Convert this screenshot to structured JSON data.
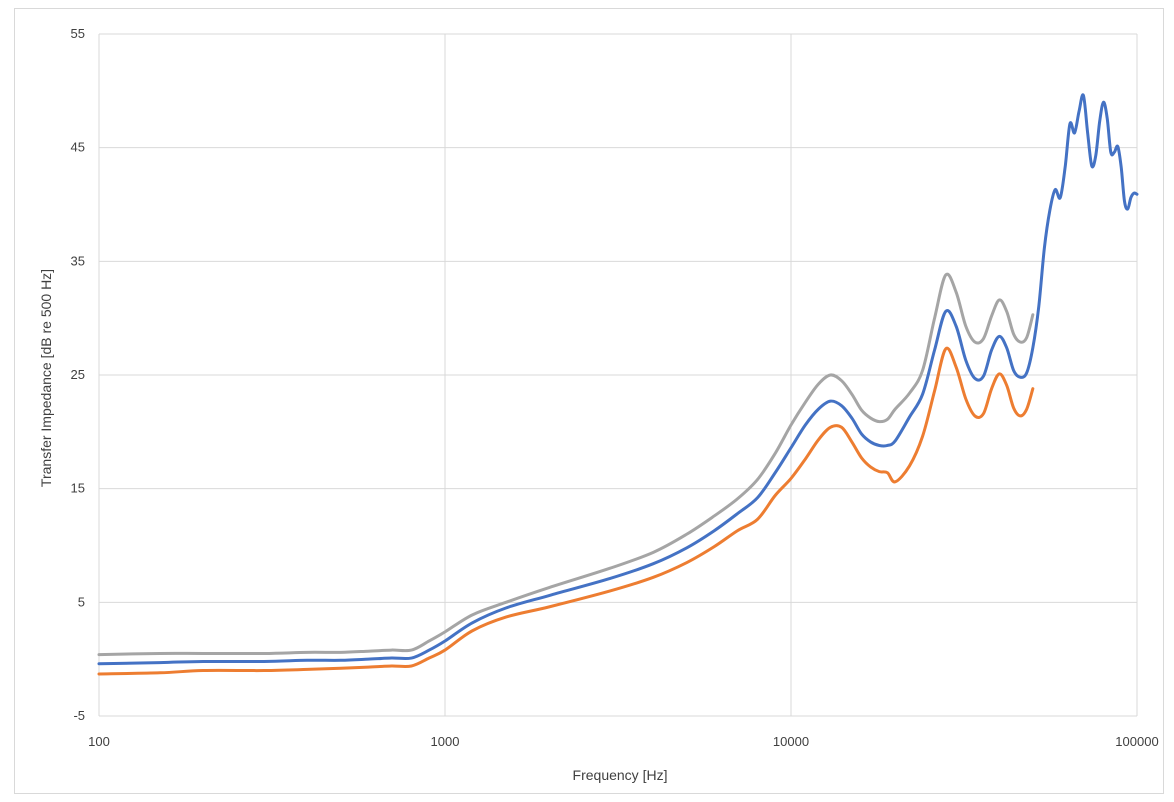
{
  "chart_data": {
    "type": "line",
    "title": "",
    "xlabel": "Frequency [Hz]",
    "ylabel": "Transfer Impedance [dB re 500 Hz]",
    "xscale": "log",
    "xlim": [
      100,
      100000
    ],
    "ylim": [
      -5,
      55
    ],
    "x_ticks": [
      100,
      1000,
      10000,
      100000
    ],
    "x_tick_labels": [
      "100",
      "1000",
      "10000",
      "100000"
    ],
    "y_ticks": [
      -5,
      5,
      15,
      25,
      35,
      45,
      55
    ],
    "y_tick_labels": [
      "-5",
      "5",
      "15",
      "25",
      "35",
      "45",
      "55"
    ],
    "grid": true,
    "legend": "none",
    "series": [
      {
        "color": "#a5a5a5",
        "x": [
          100,
          150,
          200,
          300,
          400,
          500,
          600,
          700,
          800,
          900,
          1000,
          1200,
          1500,
          2000,
          3000,
          4000,
          5000,
          6000,
          7000,
          8000,
          9000,
          10000,
          11000,
          12000,
          13000,
          14000,
          15000,
          16000,
          17000,
          18000,
          19000,
          20000,
          22000,
          24000,
          26000,
          28000,
          30000,
          32000,
          34000,
          36000,
          38000,
          40000,
          42000,
          44000,
          46000,
          48000,
          50000
        ],
        "y": [
          0.4,
          0.5,
          0.5,
          0.5,
          0.6,
          0.6,
          0.7,
          0.8,
          0.8,
          1.6,
          2.4,
          3.9,
          5.0,
          6.3,
          8.0,
          9.4,
          11.0,
          12.6,
          14.1,
          15.8,
          18.1,
          20.6,
          22.6,
          24.2,
          25.0,
          24.5,
          23.3,
          21.9,
          21.2,
          20.9,
          21.1,
          22.0,
          23.4,
          25.4,
          30.0,
          33.8,
          32.3,
          29.3,
          27.9,
          28.2,
          30.2,
          31.6,
          30.6,
          28.6,
          27.9,
          28.3,
          30.3
        ]
      },
      {
        "color": "#4472c4",
        "x": [
          100,
          150,
          200,
          300,
          400,
          500,
          600,
          700,
          800,
          900,
          1000,
          1200,
          1500,
          2000,
          3000,
          4000,
          5000,
          6000,
          7000,
          8000,
          9000,
          10000,
          11000,
          12000,
          13000,
          14000,
          15000,
          16000,
          17000,
          18000,
          19000,
          20000,
          22000,
          24000,
          26000,
          28000,
          30000,
          32000,
          34000,
          36000,
          38000,
          40000,
          42000,
          44000,
          46000,
          48000,
          50000,
          52000,
          54000,
          56000,
          58000,
          60000,
          62000,
          64000,
          66000,
          68000,
          70000,
          72000,
          74000,
          76000,
          78000,
          80000,
          82000,
          84000,
          86000,
          88000,
          90000,
          92000,
          94000,
          96000,
          98000,
          100000
        ],
        "y": [
          -0.4,
          -0.3,
          -0.2,
          -0.2,
          -0.1,
          -0.1,
          0.0,
          0.1,
          0.1,
          0.8,
          1.6,
          3.2,
          4.5,
          5.6,
          7.1,
          8.4,
          9.8,
          11.3,
          12.8,
          14.2,
          16.4,
          18.6,
          20.6,
          22.0,
          22.7,
          22.3,
          21.2,
          19.8,
          19.1,
          18.8,
          18.8,
          19.2,
          21.3,
          23.3,
          27.2,
          30.6,
          29.3,
          26.3,
          24.7,
          24.9,
          27.2,
          28.4,
          27.4,
          25.4,
          24.8,
          25.2,
          27.4,
          31.0,
          36.2,
          39.5,
          41.3,
          40.6,
          43.3,
          47.1,
          46.3,
          48.2,
          49.6,
          46.3,
          43.4,
          44.3,
          47.3,
          49.0,
          47.6,
          44.6,
          44.6,
          45.1,
          43.3,
          40.3,
          39.6,
          40.6,
          41.0,
          40.9
        ]
      },
      {
        "color": "#ed7d31",
        "x": [
          100,
          150,
          200,
          300,
          400,
          500,
          600,
          700,
          800,
          900,
          1000,
          1200,
          1500,
          2000,
          3000,
          4000,
          5000,
          6000,
          7000,
          8000,
          9000,
          10000,
          11000,
          12000,
          13000,
          14000,
          15000,
          16000,
          17000,
          18000,
          19000,
          20000,
          22000,
          24000,
          26000,
          28000,
          30000,
          32000,
          34000,
          36000,
          38000,
          40000,
          42000,
          44000,
          46000,
          48000,
          50000
        ],
        "y": [
          -1.3,
          -1.2,
          -1.0,
          -1.0,
          -0.9,
          -0.8,
          -0.7,
          -0.6,
          -0.6,
          0.1,
          0.8,
          2.5,
          3.7,
          4.6,
          6.0,
          7.2,
          8.5,
          9.9,
          11.3,
          12.3,
          14.4,
          15.9,
          17.6,
          19.3,
          20.4,
          20.4,
          19.1,
          17.7,
          16.9,
          16.5,
          16.4,
          15.6,
          17.0,
          19.6,
          23.6,
          27.3,
          25.7,
          22.9,
          21.4,
          21.6,
          23.8,
          25.1,
          24.1,
          22.1,
          21.4,
          22.0,
          23.8
        ]
      }
    ]
  }
}
